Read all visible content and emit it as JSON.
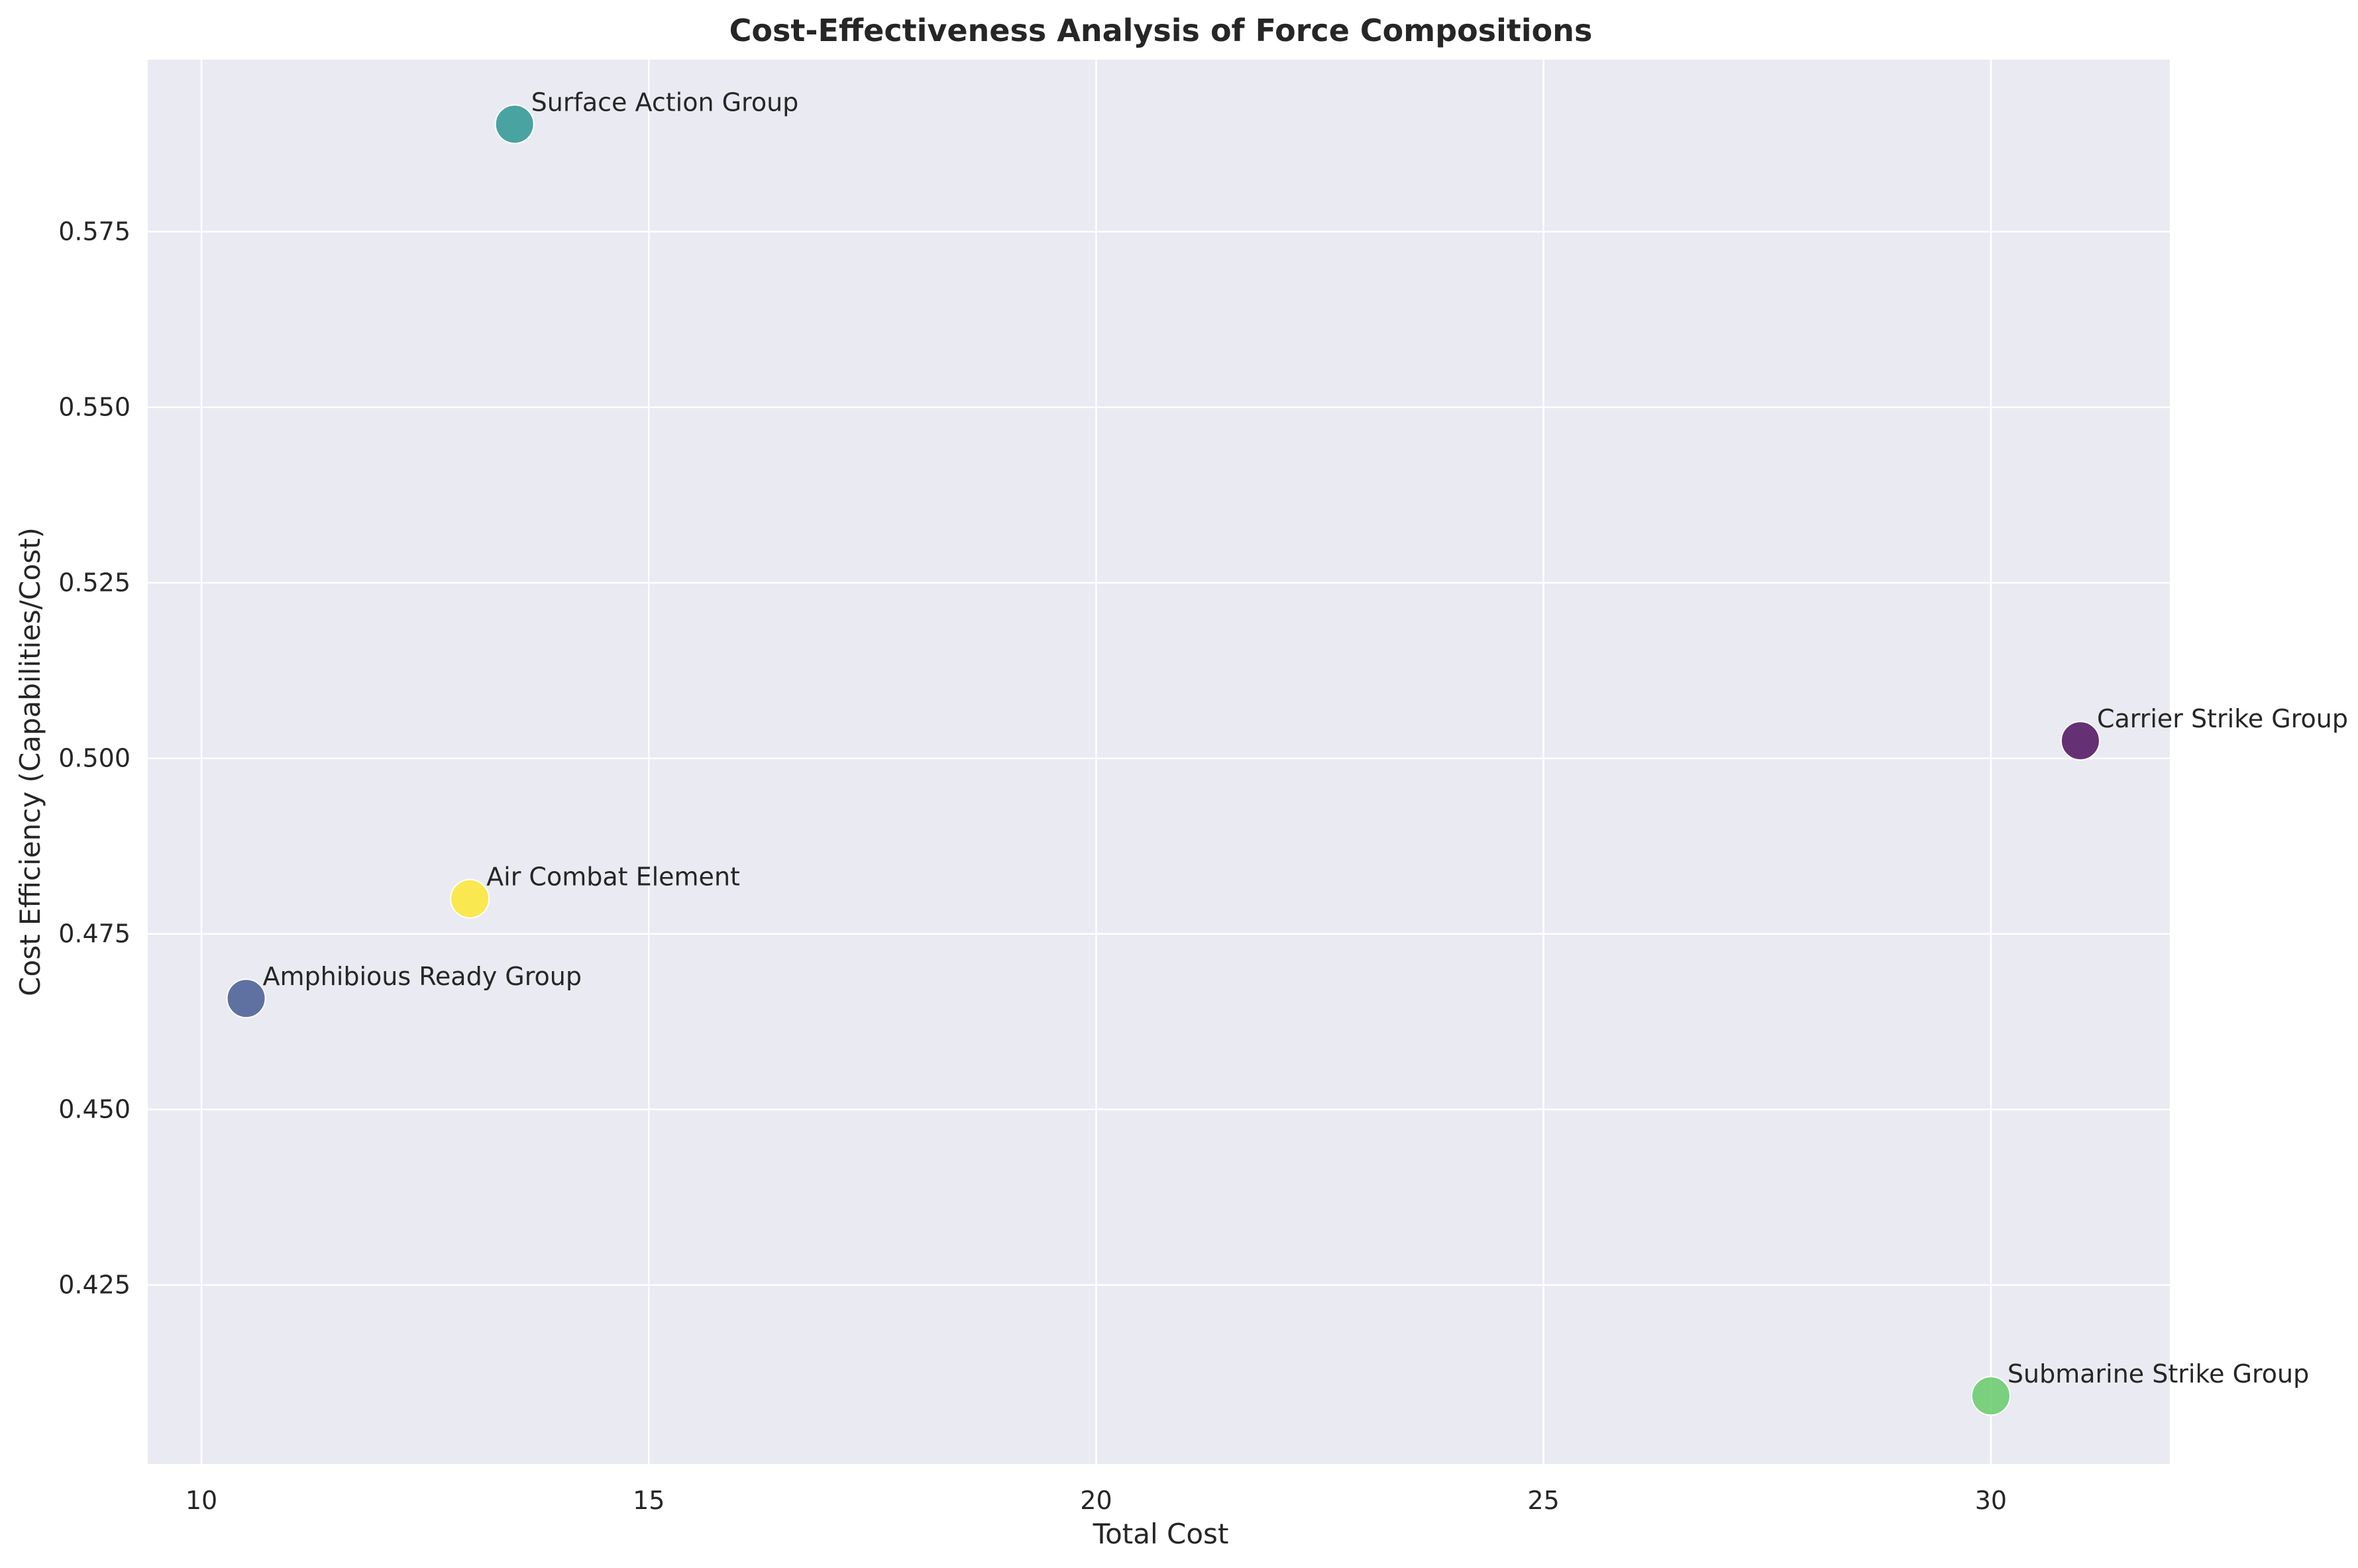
{
  "chart_data": {
    "type": "scatter",
    "title": "Cost-Effectiveness Analysis of Force Compositions",
    "xlabel": "Total Cost",
    "ylabel": "Cost Efficiency (Capabilities/Cost)",
    "xlim": [
      9.4,
      32.0
    ],
    "ylim": [
      0.3995,
      0.5995
    ],
    "xticks": [
      10,
      15,
      20,
      25,
      30
    ],
    "xtick_labels": [
      "10",
      "15",
      "20",
      "25",
      "30"
    ],
    "yticks": [
      0.425,
      0.45,
      0.475,
      0.5,
      0.525,
      0.55,
      0.575
    ],
    "ytick_labels": [
      "0.425",
      "0.450",
      "0.475",
      "0.500",
      "0.525",
      "0.550",
      "0.575"
    ],
    "grid": true,
    "legend": "none",
    "colors": {
      "plot_background": "#eaeaf2",
      "grid": "#ffffff",
      "text": "#262626"
    },
    "points": [
      {
        "label": "Carrier Strike Group",
        "x": 31.0,
        "y": 0.5025,
        "color": "#440154"
      },
      {
        "label": "Amphibious Ready Group",
        "x": 10.5,
        "y": 0.4658,
        "color": "#3b528b"
      },
      {
        "label": "Surface Action Group",
        "x": 13.5,
        "y": 0.5903,
        "color": "#21918c"
      },
      {
        "label": "Submarine Strike Group",
        "x": 30.0,
        "y": 0.4092,
        "color": "#5ec962"
      },
      {
        "label": "Air Combat Element",
        "x": 13.0,
        "y": 0.48,
        "color": "#fde725"
      }
    ]
  }
}
